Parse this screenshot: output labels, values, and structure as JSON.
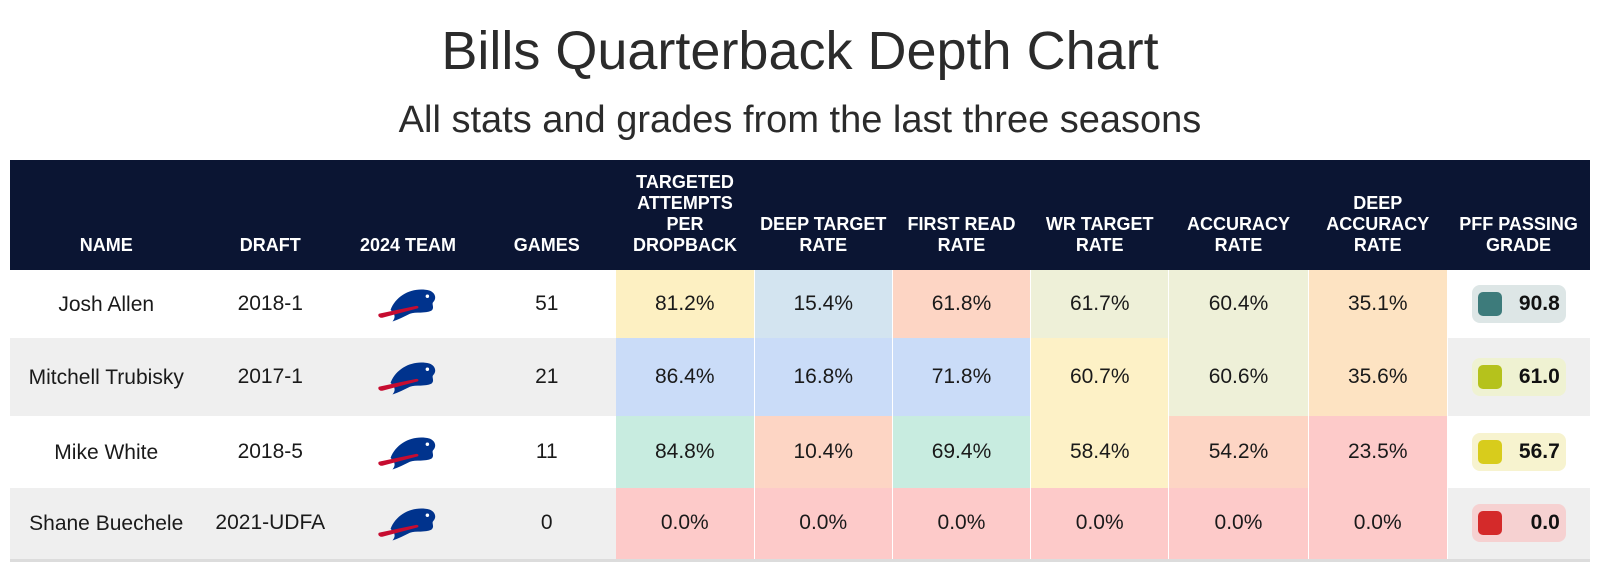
{
  "title": "Bills Quarterback Depth Chart",
  "subtitle": "All stats and grades from the last three seasons",
  "colors": {
    "header_bg": "#0b1533",
    "yellow": "#fdf0c2",
    "blue_light": "#d3e4f0",
    "blue": "#cadcf8",
    "salmon": "#fdd5c4",
    "olive_light": "#eef0d8",
    "peach": "#fde3c2",
    "mint": "#c8ece0",
    "red": "#fdcac9",
    "pale_yellow": "#fdf1c6"
  },
  "chart_data": {
    "type": "table",
    "title": "Bills Quarterback Depth Chart",
    "subtitle": "All stats and grades from the last three seasons",
    "columns": [
      "NAME",
      "DRAFT",
      "2024 TEAM",
      "GAMES",
      "TARGETED ATTEMPTS PER DROPBACK",
      "DEEP TARGET RATE",
      "FIRST READ RATE",
      "WR TARGET RATE",
      "ACCURACY RATE",
      "DEEP ACCURACY RATE",
      "PFF PASSING GRADE"
    ],
    "rows": [
      {
        "name": "Josh Allen",
        "draft": "2018-1",
        "team_icon": "bills-logo-icon",
        "games": "51",
        "metrics": [
          "81.2%",
          "15.4%",
          "61.8%",
          "61.7%",
          "60.4%",
          "35.1%"
        ],
        "metric_colors": [
          "#fdf0c2",
          "#d3e4f0",
          "#fdd5c4",
          "#eef0d8",
          "#eef0d8",
          "#fde3c2"
        ],
        "grade": "90.8",
        "grade_color": "#3d7b7b",
        "grade_bg": "#dde6e6"
      },
      {
        "name": "Mitchell Trubisky",
        "draft": "2017-1",
        "team_icon": "bills-logo-icon",
        "games": "21",
        "metrics": [
          "86.4%",
          "16.8%",
          "71.8%",
          "60.7%",
          "60.6%",
          "35.6%"
        ],
        "metric_colors": [
          "#cadcf8",
          "#cadcf8",
          "#cadcf8",
          "#fdf1c6",
          "#eef0d8",
          "#fde3c2"
        ],
        "grade": "61.0",
        "grade_color": "#b5c21c",
        "grade_bg": "#eff2d2"
      },
      {
        "name": "Mike White",
        "draft": "2018-5",
        "team_icon": "bills-logo-icon",
        "games": "11",
        "metrics": [
          "84.8%",
          "10.4%",
          "69.4%",
          "58.4%",
          "54.2%",
          "23.5%"
        ],
        "metric_colors": [
          "#c8ece0",
          "#fdd5c4",
          "#c8ece0",
          "#fdf1c6",
          "#fdd5c4",
          "#fdcac9"
        ],
        "grade": "56.7",
        "grade_color": "#d8cc1c",
        "grade_bg": "#f7f3cf"
      },
      {
        "name": "Shane Buechele",
        "draft": "2021-UDFA",
        "team_icon": "bills-logo-icon",
        "games": "0",
        "metrics": [
          "0.0%",
          "0.0%",
          "0.0%",
          "0.0%",
          "0.0%",
          "0.0%"
        ],
        "metric_colors": [
          "#fdcac9",
          "#fdcac9",
          "#fdcac9",
          "#fdcac9",
          "#fdcac9",
          "#fdcac9"
        ],
        "grade": "0.0",
        "grade_color": "#d42a2a",
        "grade_bg": "#f6d1d1"
      }
    ]
  }
}
